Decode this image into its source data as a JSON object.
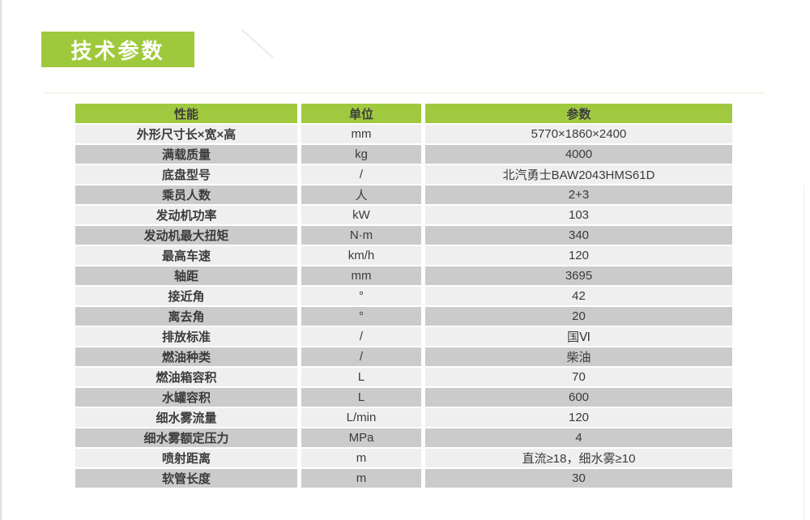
{
  "page": {
    "title_badge": "技术参数"
  },
  "colors": {
    "accent_green": "#9fc93c",
    "header_green": "#a0c93f",
    "row_light": "#efefef",
    "row_dark": "#cbcbcb",
    "text": "#3b3b3b",
    "badge_text": "#ffffff"
  },
  "table": {
    "columns": [
      {
        "label": "性能"
      },
      {
        "label": "单位"
      },
      {
        "label": "参数"
      }
    ],
    "rows": [
      {
        "name": "外形尺寸长×宽×高",
        "unit": "mm",
        "value": "5770×1860×2400"
      },
      {
        "name": "满载质量",
        "unit": "kg",
        "value": "4000"
      },
      {
        "name": "底盘型号",
        "unit": "/",
        "value": "北汽勇士BAW2043HMS61D"
      },
      {
        "name": "乘员人数",
        "unit": "人",
        "value": "2+3"
      },
      {
        "name": "发动机功率",
        "unit": "kW",
        "value": "103"
      },
      {
        "name": "发动机最大扭矩",
        "unit": "N·m",
        "value": "340"
      },
      {
        "name": "最高车速",
        "unit": "km/h",
        "value": "120"
      },
      {
        "name": "轴距",
        "unit": "mm",
        "value": "3695"
      },
      {
        "name": "接近角",
        "unit": "°",
        "value": "42"
      },
      {
        "name": "离去角",
        "unit": "°",
        "value": "20"
      },
      {
        "name": "排放标准",
        "unit": "/",
        "value": "国Ⅵ"
      },
      {
        "name": "燃油种类",
        "unit": "/",
        "value": "柴油"
      },
      {
        "name": "燃油箱容积",
        "unit": "L",
        "value": "70"
      },
      {
        "name": "水罐容积",
        "unit": "L",
        "value": "600"
      },
      {
        "name": "细水雾流量",
        "unit": "L/min",
        "value": "120"
      },
      {
        "name": "细水雾额定压力",
        "unit": "MPa",
        "value": "4"
      },
      {
        "name": "喷射距离",
        "unit": "m",
        "value": "直流≥18，细水雾≥10"
      },
      {
        "name": "软管长度",
        "unit": "m",
        "value": "30"
      }
    ]
  }
}
